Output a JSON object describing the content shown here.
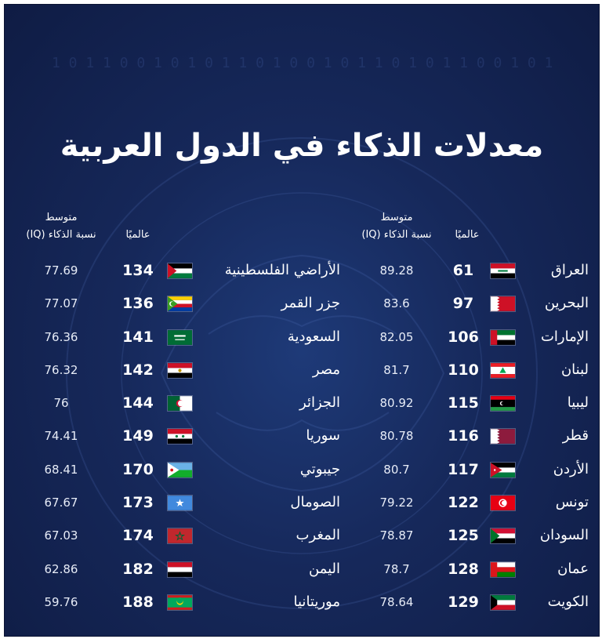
{
  "title": "معدلات الذكاء في الدول العربية",
  "headers": {
    "rank": "عالميًا",
    "iq_line1": "متوسط",
    "iq_line2": "نسبة الذكاء (IQ)"
  },
  "right_column": [
    {
      "country": "العراق",
      "rank": "61",
      "iq": "89.28",
      "flag": "iraq-flag"
    },
    {
      "country": "البحرين",
      "rank": "97",
      "iq": "83.6",
      "flag": "bahrain-flag"
    },
    {
      "country": "الإمارات",
      "rank": "106",
      "iq": "82.05",
      "flag": "uae-flag"
    },
    {
      "country": "لبنان",
      "rank": "110",
      "iq": "81.7",
      "flag": "lebanon-flag"
    },
    {
      "country": "ليبيا",
      "rank": "115",
      "iq": "80.92",
      "flag": "libya-flag"
    },
    {
      "country": "قطر",
      "rank": "116",
      "iq": "80.78",
      "flag": "qatar-flag"
    },
    {
      "country": "الأردن",
      "rank": "117",
      "iq": "80.7",
      "flag": "jordan-flag"
    },
    {
      "country": "تونس",
      "rank": "122",
      "iq": "79.22",
      "flag": "tunisia-flag"
    },
    {
      "country": "السودان",
      "rank": "125",
      "iq": "78.87",
      "flag": "sudan-flag"
    },
    {
      "country": "عمان",
      "rank": "128",
      "iq": "78.7",
      "flag": "oman-flag"
    },
    {
      "country": "الكويت",
      "rank": "129",
      "iq": "78.64",
      "flag": "kuwait-flag"
    }
  ],
  "left_column": [
    {
      "country": "الأراضي الفلسطينية",
      "rank": "134",
      "iq": "77.69",
      "flag": "palestine-flag"
    },
    {
      "country": "جزر القمر",
      "rank": "136",
      "iq": "77.07",
      "flag": "comoros-flag"
    },
    {
      "country": "السعودية",
      "rank": "141",
      "iq": "76.36",
      "flag": "saudi-flag"
    },
    {
      "country": "مصر",
      "rank": "142",
      "iq": "76.32",
      "flag": "egypt-flag"
    },
    {
      "country": "الجزائر",
      "rank": "144",
      "iq": "76",
      "flag": "algeria-flag"
    },
    {
      "country": "سوريا",
      "rank": "149",
      "iq": "74.41",
      "flag": "syria-flag"
    },
    {
      "country": "جيبوتي",
      "rank": "170",
      "iq": "68.41",
      "flag": "djibouti-flag"
    },
    {
      "country": "الصومال",
      "rank": "173",
      "iq": "67.67",
      "flag": "somalia-flag"
    },
    {
      "country": "المغرب",
      "rank": "174",
      "iq": "67.03",
      "flag": "morocco-flag"
    },
    {
      "country": "اليمن",
      "rank": "182",
      "iq": "62.86",
      "flag": "yemen-flag"
    },
    {
      "country": "موريتانيا",
      "rank": "188",
      "iq": "59.76",
      "flag": "mauritania-flag"
    }
  ],
  "colors": {
    "background": "#16285a",
    "text": "#ffffff"
  }
}
